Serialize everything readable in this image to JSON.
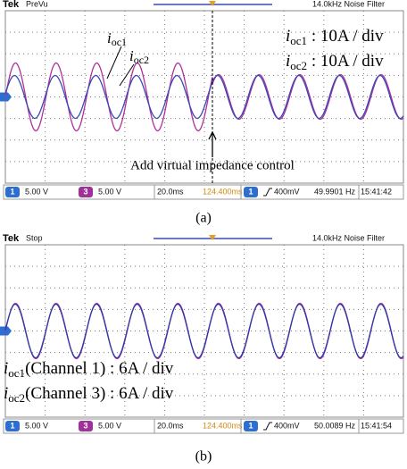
{
  "panels": [
    {
      "brand": "Tek",
      "state": "PreVu",
      "filter": "14.0kHz  Noise Filter",
      "labels": [
        {
          "var": "i",
          "sub": "oc1"
        },
        {
          "var": "i",
          "sub": "oc2"
        }
      ],
      "scales": [
        {
          "var": "i",
          "sub": "oc1",
          "text": " : 10A / div"
        },
        {
          "var": "i",
          "sub": "oc2",
          "text": " : 10A / div"
        }
      ],
      "annotation": "Add virtual impedance control",
      "footer": {
        "ch1": "1",
        "ch1_scale": "5.00 V",
        "ch3": "3",
        "ch3_scale": "5.00 V",
        "time": "20.0ms",
        "position": "124.400ms",
        "trig_ch": "1",
        "trig_level": "400mV",
        "freq": "49.9901 Hz",
        "clock": "15:41:42"
      },
      "caption": "(a)"
    },
    {
      "brand": "Tek",
      "state": "Stop",
      "filter": "14.0kHz  Noise Filter",
      "scales": [
        {
          "var": "i",
          "sub": "oc1",
          "text": "(Channel 1) : 6A / div"
        },
        {
          "var": "i",
          "sub": "oc2",
          "text": "(Channel 3) : 6A / div"
        }
      ],
      "footer": {
        "ch1": "1",
        "ch1_scale": "5.00 V",
        "ch3": "3",
        "ch3_scale": "5.00 V",
        "time": "20.0ms",
        "position": "124.400ms",
        "trig_ch": "1",
        "trig_level": "400mV",
        "freq": "50.0089 Hz",
        "clock": "15:41:54"
      },
      "caption": "(b)"
    }
  ]
}
